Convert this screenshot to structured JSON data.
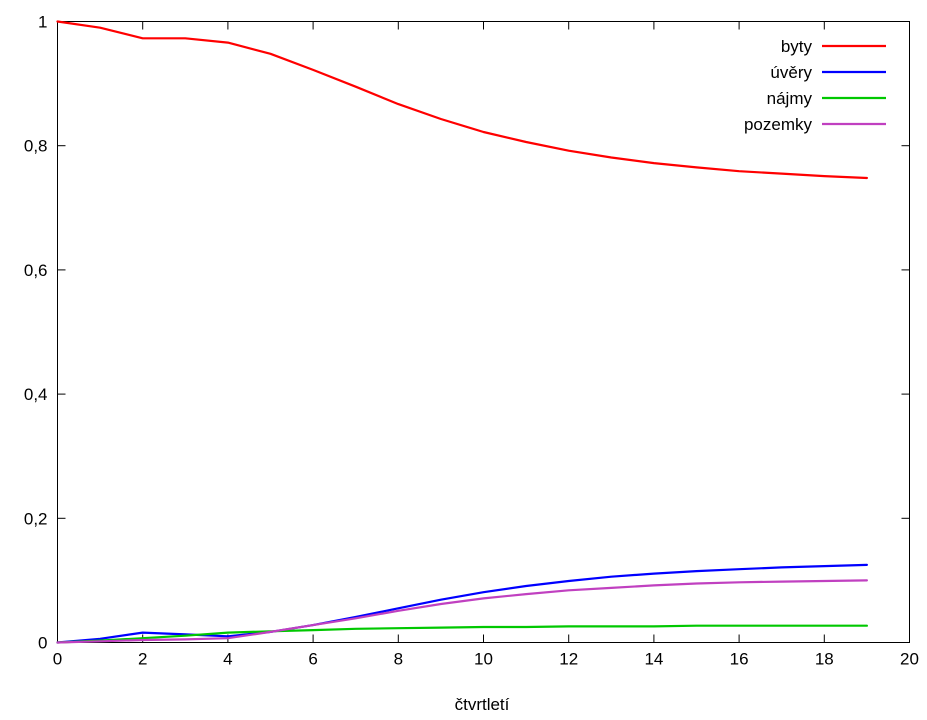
{
  "chart_data": {
    "type": "line",
    "title": "",
    "xlabel": "čtvrtletí",
    "ylabel": "",
    "xlim": [
      0,
      20
    ],
    "ylim": [
      0,
      1
    ],
    "xticks": [
      0,
      2,
      4,
      6,
      8,
      10,
      12,
      14,
      16,
      18,
      20
    ],
    "xtick_labels": [
      "0",
      "2",
      "4",
      "6",
      "8",
      "10",
      "12",
      "14",
      "16",
      "18",
      "20"
    ],
    "yticks": [
      0,
      0.2,
      0.4,
      0.6,
      0.8,
      1
    ],
    "ytick_labels": [
      "0",
      "0,2",
      "0,4",
      "0,6",
      "0,8",
      "1"
    ],
    "grid": false,
    "legend_position": "top-right",
    "x": [
      0,
      1,
      2,
      3,
      4,
      5,
      6,
      7,
      8,
      9,
      10,
      11,
      12,
      13,
      14,
      15,
      16,
      17,
      18,
      19
    ],
    "series": [
      {
        "name": "byty",
        "color": "#ff0000",
        "values": [
          1.0,
          0.99,
          0.973,
          0.973,
          0.966,
          0.948,
          0.922,
          0.895,
          0.867,
          0.843,
          0.822,
          0.806,
          0.792,
          0.781,
          0.772,
          0.765,
          0.759,
          0.755,
          0.751,
          0.748
        ]
      },
      {
        "name": "úvěry",
        "color": "#0000ff",
        "values": [
          0.0,
          0.006,
          0.016,
          0.013,
          0.01,
          0.017,
          0.028,
          0.041,
          0.055,
          0.069,
          0.081,
          0.091,
          0.099,
          0.106,
          0.111,
          0.115,
          0.118,
          0.121,
          0.123,
          0.125
        ]
      },
      {
        "name": "nájmy",
        "color": "#00c800",
        "values": [
          0.0,
          0.003,
          0.007,
          0.011,
          0.016,
          0.018,
          0.02,
          0.022,
          0.023,
          0.024,
          0.025,
          0.025,
          0.026,
          0.026,
          0.026,
          0.027,
          0.027,
          0.027,
          0.027,
          0.027
        ]
      },
      {
        "name": "pozemky",
        "color": "#c040c0",
        "values": [
          0.0,
          0.002,
          0.004,
          0.005,
          0.007,
          0.017,
          0.028,
          0.039,
          0.051,
          0.062,
          0.071,
          0.078,
          0.084,
          0.088,
          0.092,
          0.095,
          0.097,
          0.098,
          0.099,
          0.1
        ]
      }
    ]
  }
}
